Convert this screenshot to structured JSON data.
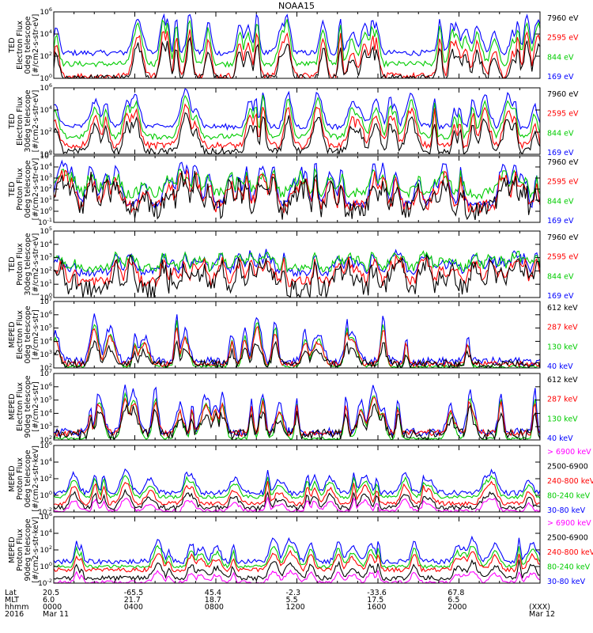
{
  "title": "NOAA15",
  "chart_data": [
    {
      "type": "line",
      "ylabel": [
        "TED",
        "Electron Flux",
        "0deg telescope",
        "[#/cm2-s-str-eV]"
      ],
      "log_y": true,
      "ylim": [
        1,
        1000000
      ],
      "ytick_exponents": [
        0,
        2,
        4,
        6
      ],
      "series": [
        {
          "name": "7960 eV",
          "color": "#000000",
          "base": 0.0,
          "peak": 3.5,
          "noise": 0.35
        },
        {
          "name": "2595 eV",
          "color": "#ff0000",
          "base": 0.2,
          "peak": 4.6,
          "noise": 0.3
        },
        {
          "name": "844 eV",
          "color": "#00cc00",
          "base": 1.3,
          "peak": 5.5,
          "noise": 0.25
        },
        {
          "name": "169 eV",
          "color": "#0000ff",
          "base": 2.3,
          "peak": 6.0,
          "noise": 0.25
        }
      ],
      "spikes": 30
    },
    {
      "type": "line",
      "ylabel": [
        "TED",
        "Electron Flux",
        "30deg telescope",
        "[#/cm2-s-str-eV]"
      ],
      "log_y": true,
      "ylim": [
        1,
        1000000
      ],
      "ytick_exponents": [
        0,
        2,
        4,
        6
      ],
      "series": [
        {
          "name": "7960 eV",
          "color": "#000000",
          "base": 0.2,
          "peak": 3.6,
          "noise": 0.35
        },
        {
          "name": "2595 eV",
          "color": "#ff0000",
          "base": 0.8,
          "peak": 4.5,
          "noise": 0.3
        },
        {
          "name": "844 eV",
          "color": "#00cc00",
          "base": 1.6,
          "peak": 5.2,
          "noise": 0.25
        },
        {
          "name": "169 eV",
          "color": "#0000ff",
          "base": 2.5,
          "peak": 5.8,
          "noise": 0.25
        }
      ],
      "spikes": 30
    },
    {
      "type": "line",
      "ylabel": [
        "TED",
        "Proton Flux",
        "0deg telescope",
        "[#/cm2-s-str-eV]"
      ],
      "log_y": true,
      "ylim": [
        0.1,
        100000
      ],
      "ytick_exponents": [
        -1,
        0,
        1,
        2,
        3,
        4,
        5
      ],
      "series": [
        {
          "name": "7960 eV",
          "color": "#000000",
          "base": 0.1,
          "peak": 3.0,
          "noise": 0.9
        },
        {
          "name": "2595 eV",
          "color": "#ff0000",
          "base": 0.4,
          "peak": 3.3,
          "noise": 0.6
        },
        {
          "name": "844 eV",
          "color": "#00cc00",
          "base": 1.6,
          "peak": 3.6,
          "noise": 0.5
        },
        {
          "name": "169 eV",
          "color": "#0000ff",
          "base": 0.6,
          "peak": 4.5,
          "noise": 0.3
        }
      ],
      "spikes": 45
    },
    {
      "type": "line",
      "ylabel": [
        "TED",
        "Proton Flux",
        "30deg telescope",
        "[#/cm2-s-str-eV]"
      ],
      "log_y": true,
      "ylim": [
        1,
        100000
      ],
      "ytick_exponents": [
        0,
        1,
        2,
        3,
        4,
        5
      ],
      "series": [
        {
          "name": "7960 eV",
          "color": "#000000",
          "base": 0.6,
          "peak": 2.7,
          "noise": 0.7
        },
        {
          "name": "2595 eV",
          "color": "#ff0000",
          "base": 1.2,
          "peak": 2.9,
          "noise": 0.4
        },
        {
          "name": "844 eV",
          "color": "#00cc00",
          "base": 2.2,
          "peak": 3.3,
          "noise": 0.35
        },
        {
          "name": "169 eV",
          "color": "#0000ff",
          "base": 1.9,
          "peak": 3.4,
          "noise": 0.3
        }
      ],
      "spikes": 50
    },
    {
      "type": "line",
      "ylabel": [
        "MEPED",
        "Electron Flux",
        "0deg telescope",
        "[#/cm2-s-str]"
      ],
      "log_y": true,
      "ylim": [
        100,
        10000000
      ],
      "ytick_exponents": [
        2,
        3,
        4,
        5,
        6,
        7
      ],
      "series": [
        {
          "name": "612 keV",
          "color": "#000000",
          "base": 2.3,
          "peak": 4.0,
          "noise": 0.3
        },
        {
          "name": "287 keV",
          "color": "#ff0000",
          "base": 2.3,
          "peak": 5.2,
          "noise": 0.2
        },
        {
          "name": "130 keV",
          "color": "#00cc00",
          "base": 2.1,
          "peak": 5.6,
          "noise": 0.1
        },
        {
          "name": "40 keV",
          "color": "#0000ff",
          "base": 2.5,
          "peak": 6.2,
          "noise": 0.3
        }
      ],
      "spikes": 20
    },
    {
      "type": "line",
      "ylabel": [
        "MEPED",
        "Electron Flux",
        "90deg telescope",
        "[#/cm2-s-str]"
      ],
      "log_y": true,
      "ylim": [
        100,
        10000000
      ],
      "ytick_exponents": [
        2,
        3,
        4,
        5,
        6,
        7
      ],
      "series": [
        {
          "name": "612 keV",
          "color": "#000000",
          "base": 2.4,
          "peak": 4.6,
          "noise": 0.4
        },
        {
          "name": "287 keV",
          "color": "#ff0000",
          "base": 2.5,
          "peak": 5.3,
          "noise": 0.25
        },
        {
          "name": "130 keV",
          "color": "#00cc00",
          "base": 2.1,
          "peak": 5.7,
          "noise": 0.1
        },
        {
          "name": "40 keV",
          "color": "#0000ff",
          "base": 2.6,
          "peak": 6.3,
          "noise": 0.3
        }
      ],
      "spikes": 30
    },
    {
      "type": "line",
      "ylabel": [
        "MEPED",
        "Proton Flux",
        "0deg telescope",
        "[#/cm2-s-str-keV]"
      ],
      "log_y": true,
      "ylim": [
        0.01,
        1000000
      ],
      "ytick_exponents": [
        -2,
        0,
        2,
        4,
        6
      ],
      "series": [
        {
          "name": "> 6900 keV",
          "color": "#ff00ff",
          "base": -1.9,
          "peak": -0.3,
          "noise": 0.2
        },
        {
          "name": "2500-6900",
          "color": "#000000",
          "base": -1.5,
          "peak": 0.5,
          "noise": 0.3
        },
        {
          "name": "240-800 keV",
          "color": "#ff0000",
          "base": -1.0,
          "peak": 1.6,
          "noise": 0.25
        },
        {
          "name": "80-240 keV",
          "color": "#00cc00",
          "base": -0.2,
          "peak": 2.3,
          "noise": 0.2
        },
        {
          "name": "30-80 keV",
          "color": "#0000ff",
          "base": 0.3,
          "peak": 3.0,
          "noise": 0.3
        }
      ],
      "spikes": 30
    },
    {
      "type": "line",
      "ylabel": [
        "MEPED",
        "Proton Flux",
        "90deg telescope",
        "[#/cm2-s-str-keV]"
      ],
      "log_y": true,
      "ylim": [
        0.01,
        1000000
      ],
      "ytick_exponents": [
        -2,
        0,
        2,
        4,
        6
      ],
      "series": [
        {
          "name": "> 6900 keV",
          "color": "#ff00ff",
          "base": -1.9,
          "peak": -0.5,
          "noise": 0.2
        },
        {
          "name": "2500-6900",
          "color": "#000000",
          "base": -1.4,
          "peak": 0.6,
          "noise": 0.3
        },
        {
          "name": "240-800 keV",
          "color": "#ff0000",
          "base": -0.4,
          "peak": 1.8,
          "noise": 0.25
        },
        {
          "name": "80-240 keV",
          "color": "#00cc00",
          "base": 0.0,
          "peak": 2.6,
          "noise": 0.2
        },
        {
          "name": "30-80 keV",
          "color": "#0000ff",
          "base": 0.6,
          "peak": 3.4,
          "noise": 0.3
        }
      ],
      "spikes": 30
    }
  ],
  "x_axis": {
    "row_labels": [
      "Lat",
      "MLT",
      "hhmm",
      "2016"
    ],
    "columns": [
      {
        "frac": 0.0,
        "Lat": "20.5",
        "MLT": "6.0",
        "hhmm": "0000",
        "date": "Mar 11"
      },
      {
        "frac": 0.167,
        "Lat": "-65.5",
        "MLT": "21.7",
        "hhmm": "0400",
        "date": ""
      },
      {
        "frac": 0.333,
        "Lat": "45.4",
        "MLT": "18.7",
        "hhmm": "0800",
        "date": ""
      },
      {
        "frac": 0.5,
        "Lat": "-2.3",
        "MLT": "5.5",
        "hhmm": "1200",
        "date": ""
      },
      {
        "frac": 0.667,
        "Lat": "-33.6",
        "MLT": "17.5",
        "hhmm": "1600",
        "date": ""
      },
      {
        "frac": 0.833,
        "Lat": "67.8",
        "MLT": "6.5",
        "hhmm": "2000",
        "date": ""
      },
      {
        "frac": 1.0,
        "Lat": "",
        "MLT": "",
        "hhmm": "(XXX)",
        "date": "Mar 12"
      }
    ]
  }
}
